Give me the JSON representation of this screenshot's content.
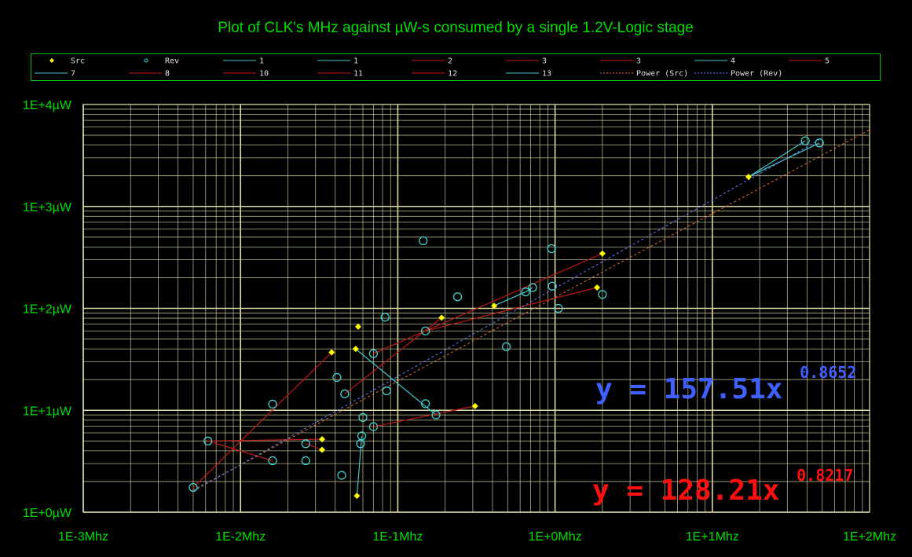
{
  "chart_data": {
    "type": "scatter",
    "title": "Plot of CLK's MHz against µW-s consumed by a single 1.2V-Logic stage",
    "x_scale": "log",
    "y_scale": "log",
    "xlim": [
      0.001,
      100
    ],
    "ylim": [
      1,
      10000
    ],
    "x_ticks": [
      {
        "value": 0.001,
        "label": "1E-3Mhz"
      },
      {
        "value": 0.01,
        "label": "1E-2Mhz"
      },
      {
        "value": 0.1,
        "label": "1E-1Mhz"
      },
      {
        "value": 1,
        "label": "1E+0Mhz"
      },
      {
        "value": 10,
        "label": "1E+1Mhz"
      },
      {
        "value": 100,
        "label": "1E+2Mhz"
      }
    ],
    "y_ticks": [
      {
        "value": 1,
        "label": "1E+0µW"
      },
      {
        "value": 10,
        "label": "1E+1µW"
      },
      {
        "value": 100,
        "label": "1E+2µW"
      },
      {
        "value": 1000,
        "label": "1E+3µW"
      },
      {
        "value": 10000,
        "label": "1E+4µW"
      }
    ],
    "grid": true,
    "legend_position": "top",
    "colors": {
      "background": "#000000",
      "grid": "#e8e8b0",
      "text": "#00e000",
      "src": "#ffff00",
      "rev": "#40d0d0",
      "red_line": "#c01818",
      "cyan_line": "#40c8d0",
      "eq_rev": "#4060ff",
      "eq_src": "#ff1010"
    },
    "legend": [
      {
        "label": "Src",
        "kind": "diamond",
        "color": "#ffff00"
      },
      {
        "label": "Rev",
        "kind": "circle",
        "color": "#40d0d0"
      },
      {
        "label": "1",
        "kind": "line",
        "color": "#40c8d0"
      },
      {
        "label": "1",
        "kind": "line",
        "color": "#40c8d0"
      },
      {
        "label": "2",
        "kind": "line",
        "color": "#c01818"
      },
      {
        "label": "3",
        "kind": "line",
        "color": "#c01818"
      },
      {
        "label": "3",
        "kind": "line",
        "color": "#c01818"
      },
      {
        "label": "4",
        "kind": "line",
        "color": "#40c8d0"
      },
      {
        "label": "5",
        "kind": "line",
        "color": "#c01818"
      },
      {
        "label": "7",
        "kind": "line",
        "color": "#40c8d0"
      },
      {
        "label": "8",
        "kind": "line",
        "color": "#c01818"
      },
      {
        "label": "10",
        "kind": "line",
        "color": "#c01818"
      },
      {
        "label": "11",
        "kind": "line",
        "color": "#c01818"
      },
      {
        "label": "12",
        "kind": "line",
        "color": "#c01818"
      },
      {
        "label": "13",
        "kind": "line",
        "color": "#40c8d0"
      },
      {
        "label": "Power (Src)",
        "kind": "dash",
        "color": "#e07030"
      },
      {
        "label": "Power (Rev)",
        "kind": "dash",
        "color": "#6080ff"
      }
    ],
    "src_points": [
      [
        0.038,
        37
      ],
      [
        0.054,
        40
      ],
      [
        0.056,
        66
      ],
      [
        0.033,
        5.2
      ],
      [
        0.033,
        4.1
      ],
      [
        0.055,
        1.45
      ],
      [
        0.19,
        81
      ],
      [
        0.31,
        11
      ],
      [
        0.41,
        106
      ],
      [
        1.85,
        160
      ],
      [
        2.0,
        345
      ],
      [
        17.0,
        1950
      ]
    ],
    "rev_points": [
      [
        0.005,
        1.75
      ],
      [
        0.0062,
        5.0
      ],
      [
        0.016,
        11.5
      ],
      [
        0.016,
        3.2
      ],
      [
        0.026,
        4.7
      ],
      [
        0.026,
        3.2
      ],
      [
        0.041,
        21
      ],
      [
        0.044,
        2.3
      ],
      [
        0.046,
        14.5
      ],
      [
        0.058,
        4.7
      ],
      [
        0.059,
        5.6
      ],
      [
        0.06,
        8.5
      ],
      [
        0.07,
        6.9
      ],
      [
        0.07,
        36
      ],
      [
        0.083,
        82
      ],
      [
        0.085,
        15.5
      ],
      [
        0.145,
        460
      ],
      [
        0.15,
        60
      ],
      [
        0.15,
        11.6
      ],
      [
        0.175,
        9.0
      ],
      [
        0.24,
        130
      ],
      [
        0.49,
        42
      ],
      [
        0.65,
        145
      ],
      [
        0.72,
        160
      ],
      [
        0.95,
        385
      ],
      [
        0.96,
        165
      ],
      [
        1.05,
        100
      ],
      [
        2.0,
        137
      ],
      [
        39.0,
        4400
      ],
      [
        48.0,
        4200
      ]
    ],
    "series_lines": [
      {
        "name": "1",
        "color": "#40c8d0",
        "points": [
          [
            17.0,
            1950
          ],
          [
            39.0,
            4400
          ]
        ]
      },
      {
        "name": "1",
        "color": "#40c8d0",
        "points": [
          [
            17.0,
            1950
          ],
          [
            48.0,
            4200
          ]
        ]
      },
      {
        "name": "2",
        "color": "#c01818",
        "points": [
          [
            0.005,
            1.75
          ],
          [
            0.038,
            37
          ]
        ]
      },
      {
        "name": "3",
        "color": "#c01818",
        "points": [
          [
            0.0062,
            5.0
          ],
          [
            0.033,
            5.2
          ]
        ]
      },
      {
        "name": "3",
        "color": "#c01818",
        "points": [
          [
            0.026,
            4.7
          ],
          [
            0.033,
            4.1
          ]
        ]
      },
      {
        "name": "4",
        "color": "#40c8d0",
        "points": [
          [
            0.054,
            40
          ],
          [
            0.175,
            9.0
          ]
        ]
      },
      {
        "name": "5",
        "color": "#c01818",
        "points": [
          [
            0.046,
            14.5
          ],
          [
            0.19,
            81
          ]
        ]
      },
      {
        "name": "7",
        "color": "#40c8d0",
        "points": [
          [
            0.41,
            106
          ],
          [
            0.65,
            145
          ],
          [
            0.72,
            160
          ]
        ]
      },
      {
        "name": "8",
        "color": "#c01818",
        "points": [
          [
            0.07,
            36
          ],
          [
            2.0,
            345
          ]
        ]
      },
      {
        "name": "10",
        "color": "#c01818",
        "points": [
          [
            0.07,
            6.9
          ],
          [
            0.31,
            11
          ]
        ]
      },
      {
        "name": "11",
        "color": "#c01818",
        "points": [
          [
            0.15,
            60
          ],
          [
            1.85,
            160
          ]
        ]
      },
      {
        "name": "12",
        "color": "#c01818",
        "points": [
          [
            0.0062,
            5.0
          ],
          [
            0.016,
            3.2
          ]
        ]
      },
      {
        "name": "13",
        "color": "#40c8d0",
        "points": [
          [
            0.055,
            1.45
          ],
          [
            0.059,
            5.6
          ]
        ]
      }
    ],
    "trendlines": [
      {
        "name": "Power (Src)",
        "coefficient": 128.21,
        "exponent": 0.8217,
        "color": "#e07030",
        "x_range": [
          0.005,
          100
        ]
      },
      {
        "name": "Power (Rev)",
        "coefficient": 157.51,
        "exponent": 0.8652,
        "color": "#6080ff",
        "x_range": [
          0.005,
          48
        ]
      }
    ],
    "annotations": [
      {
        "id": "rev",
        "text": "y = 157.51x",
        "exponent": "0.8652",
        "color": "#4060ff"
      },
      {
        "id": "src",
        "text": "y = 128.21x",
        "exponent": "0.8217",
        "color": "#ff1010"
      }
    ]
  }
}
